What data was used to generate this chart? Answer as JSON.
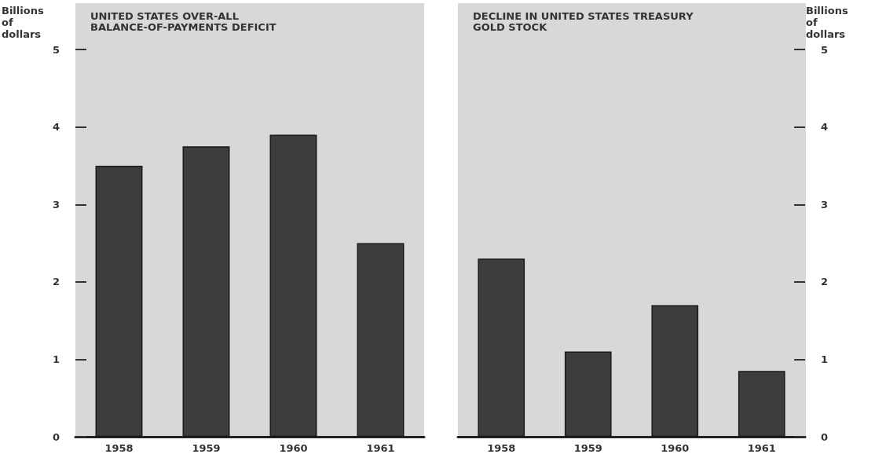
{
  "chart_data": [
    {
      "type": "bar",
      "title": "UNITED STATES OVER-ALL BALANCE-OF-PAYMENTS DEFICIT",
      "ylabel": "Billions of dollars",
      "categories": [
        "1958",
        "1959",
        "1960",
        "1961"
      ],
      "series": [
        {
          "color": "#3d3d3d",
          "values": [
            3.5,
            3.75,
            3.9,
            2.5
          ]
        }
      ],
      "ylim": [
        0,
        5.6
      ],
      "yticks": [
        0,
        1,
        2,
        3,
        4,
        5
      ],
      "grid": false
    },
    {
      "type": "bar",
      "title": "DECLINE IN UNITED STATES TREASURY GOLD STOCK",
      "y2label": "Billions of dollars",
      "categories": [
        "1958",
        "1959",
        "1960",
        "1961"
      ],
      "series": [
        {
          "color": "#3d3d3d",
          "values": [
            2.3,
            1.1,
            1.7,
            0.85
          ],
          "axis": "y2"
        }
      ],
      "y2lim": [
        0,
        5.6
      ],
      "y2ticks": [
        0,
        1,
        2,
        3,
        4,
        5
      ],
      "grid": false
    }
  ]
}
